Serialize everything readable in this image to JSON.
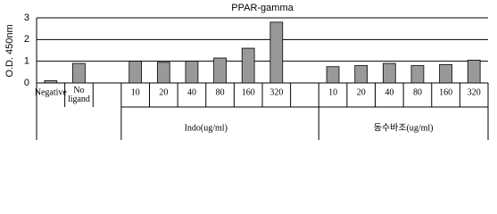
{
  "chart_data": {
    "type": "bar",
    "title": "PPAR-gamma",
    "y_label": "O.D. 450nm",
    "categories": [
      "Negative",
      "No ligand",
      null,
      "10",
      "20",
      "40",
      "80",
      "160",
      "320",
      null,
      "10",
      "20",
      "40",
      "80",
      "160",
      "320"
    ],
    "values": [
      0.1,
      0.9,
      null,
      1.0,
      0.95,
      1.0,
      1.15,
      1.6,
      2.8,
      null,
      0.75,
      0.8,
      0.9,
      0.8,
      0.85,
      1.05
    ],
    "color": "#999999",
    "groups": [
      "Indo(ug/ml)",
      "동수바조(ug/ml)"
    ],
    "ylim": [
      0,
      3
    ],
    "yticks": [
      0,
      1,
      2,
      3
    ],
    "grid": true
  }
}
